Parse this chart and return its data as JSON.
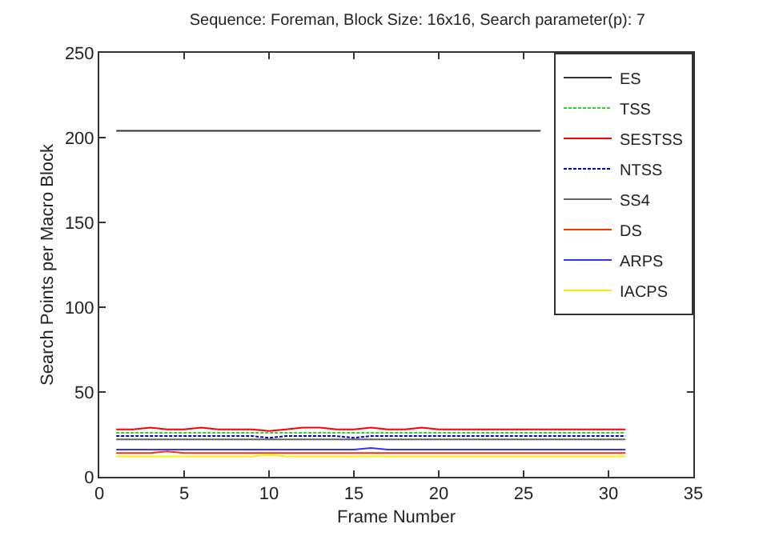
{
  "chart_data": {
    "type": "line",
    "title": "Sequence: Foreman, Block Size: 16x16, Search parameter(p): 7",
    "xlabel": "Frame Number",
    "ylabel": "Search Points per Macro Block",
    "x": [
      1,
      2,
      3,
      4,
      5,
      6,
      7,
      8,
      9,
      10,
      11,
      12,
      13,
      14,
      15,
      16,
      17,
      18,
      19,
      20,
      21,
      22,
      23,
      24,
      25,
      26,
      27,
      28,
      29,
      30,
      31
    ],
    "series": [
      {
        "name": "ES",
        "color": "#333333",
        "line_style": "solid",
        "values": [
          204,
          204,
          204,
          204,
          204,
          204,
          204,
          204,
          204,
          204,
          204,
          204,
          204,
          204,
          204,
          204,
          204,
          204,
          204,
          204,
          204,
          204,
          204,
          204,
          204,
          204,
          null,
          null,
          null,
          null,
          null
        ]
      },
      {
        "name": "TSS",
        "color": "#33cc33",
        "line_style": "dotted",
        "values": [
          26,
          26,
          26,
          26,
          26,
          26,
          26,
          26,
          26,
          26,
          26,
          26,
          26,
          26,
          26,
          26,
          26,
          26,
          26,
          26,
          26,
          26,
          26,
          26,
          26,
          26,
          26,
          26,
          26,
          26,
          26
        ]
      },
      {
        "name": "SESTSS",
        "color": "#ff0000",
        "line_style": "solid",
        "values": [
          28,
          28,
          29,
          28,
          28,
          29,
          28,
          28,
          28,
          27,
          28,
          29,
          29,
          28,
          28,
          29,
          28,
          28,
          29,
          28,
          28,
          28,
          28,
          28,
          28,
          28,
          28,
          28,
          28,
          28,
          28
        ]
      },
      {
        "name": "NTSS",
        "color": "#0000cc",
        "line_style": "dotted",
        "values": [
          24,
          24,
          24,
          24,
          24,
          24,
          24,
          24,
          24,
          23,
          24,
          24,
          24,
          24,
          23,
          24,
          24,
          24,
          24,
          24,
          24,
          24,
          24,
          24,
          24,
          24,
          24,
          24,
          24,
          24,
          24
        ]
      },
      {
        "name": "SS4",
        "color": "#666666",
        "line_style": "solid",
        "values": [
          22,
          22,
          22,
          22,
          22,
          22,
          22,
          22,
          22,
          22,
          22,
          22,
          22,
          22,
          22,
          22,
          22,
          22,
          22,
          22,
          22,
          22,
          22,
          22,
          22,
          22,
          22,
          22,
          22,
          22,
          22
        ]
      },
      {
        "name": "DS",
        "color": "#ff3300",
        "line_style": "solid",
        "values": [
          14,
          14,
          14,
          15,
          14,
          14,
          14,
          14,
          14,
          14,
          14,
          14,
          14,
          14,
          14,
          14,
          14,
          14,
          14,
          14,
          14,
          14,
          14,
          14,
          14,
          14,
          14,
          14,
          14,
          14,
          14
        ]
      },
      {
        "name": "ARPS",
        "color": "#3333ff",
        "line_style": "solid",
        "values": [
          16,
          16,
          16,
          16,
          16,
          16,
          16,
          16,
          16,
          16,
          16,
          16,
          16,
          16,
          16,
          17,
          16,
          16,
          16,
          16,
          16,
          16,
          16,
          16,
          16,
          16,
          16,
          16,
          16,
          16,
          16
        ]
      },
      {
        "name": "IACPS",
        "color": "#ffee00",
        "line_style": "solid",
        "values": [
          12,
          12,
          12,
          12,
          12,
          12,
          12,
          12,
          12,
          13,
          12,
          12,
          12,
          12,
          12,
          12,
          12,
          12,
          12,
          12,
          12,
          12,
          12,
          12,
          12,
          12,
          12,
          12,
          12,
          12,
          12
        ]
      }
    ],
    "xlim": [
      0,
      35
    ],
    "xticks": [
      0,
      5,
      10,
      15,
      20,
      25,
      30,
      35
    ],
    "ylim": [
      0,
      250
    ],
    "yticks": [
      0,
      50,
      100,
      150,
      200,
      250
    ],
    "grid": false,
    "legend": "top right",
    "marker": "none"
  }
}
